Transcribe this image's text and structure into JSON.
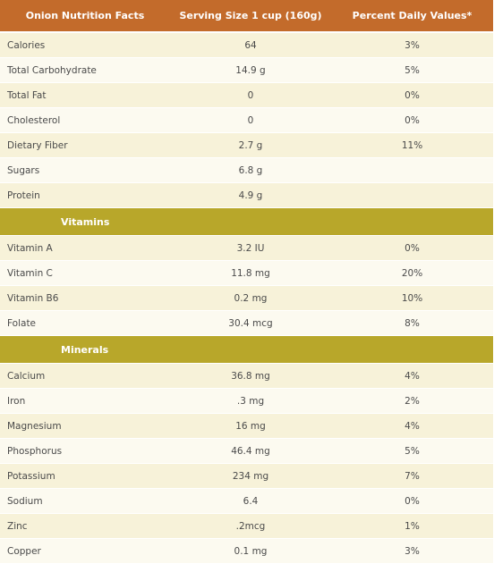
{
  "header": {
    "col1": "Onion Nutrition Facts",
    "col2": "Serving Size 1 cup (160g)",
    "col3": "Percent Daily Values*"
  },
  "general": [
    {
      "name": "Calories",
      "value": "64",
      "pct": "3%"
    },
    {
      "name": "Total Carbohydrate",
      "value": "14.9 g",
      "pct": "5%"
    },
    {
      "name": "Total Fat",
      "value": "0",
      "pct": "0%"
    },
    {
      "name": "Cholesterol",
      "value": "0",
      "pct": "0%"
    },
    {
      "name": "Dietary Fiber",
      "value": "2.7 g",
      "pct": "11%"
    },
    {
      "name": "Sugars",
      "value": "6.8 g",
      "pct": ""
    },
    {
      "name": "Protein",
      "value": "4.9 g",
      "pct": ""
    }
  ],
  "vitamins_title": "Vitamins",
  "vitamins": [
    {
      "name": "Vitamin A",
      "value": "3.2 IU",
      "pct": "0%"
    },
    {
      "name": "Vitamin C",
      "value": "11.8 mg",
      "pct": "20%"
    },
    {
      "name": "Vitamin B6",
      "value": "0.2 mg",
      "pct": "10%"
    },
    {
      "name": "Folate",
      "value": "30.4 mcg",
      "pct": "8%"
    }
  ],
  "minerals_title": "Minerals",
  "minerals": [
    {
      "name": "Calcium",
      "value": "36.8 mg",
      "pct": "4%"
    },
    {
      "name": "Iron",
      "value": ".3 mg",
      "pct": "2%"
    },
    {
      "name": "Magnesium",
      "value": "16 mg",
      "pct": "4%"
    },
    {
      "name": "Phosphorus",
      "value": "46.4 mg",
      "pct": "5%"
    },
    {
      "name": "Potassium",
      "value": "234 mg",
      "pct": "7%"
    },
    {
      "name": "Sodium",
      "value": "6.4",
      "pct": "0%"
    },
    {
      "name": "Zinc",
      "value": ".2mcg",
      "pct": "1%"
    },
    {
      "name": "Copper",
      "value": "0.1 mg",
      "pct": "3%"
    }
  ]
}
